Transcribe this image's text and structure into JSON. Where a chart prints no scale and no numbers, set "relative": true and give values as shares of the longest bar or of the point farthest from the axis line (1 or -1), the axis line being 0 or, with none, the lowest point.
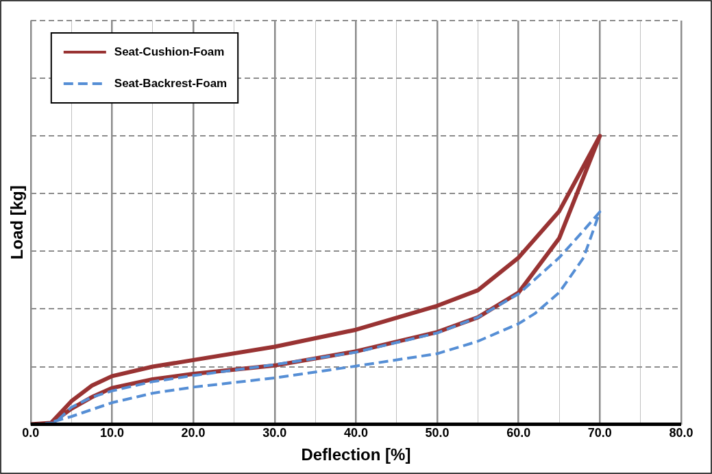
{
  "chart_data": {
    "type": "line",
    "xlabel": "Deflection [%]",
    "ylabel": "Load [kg]",
    "relative": true,
    "xlim": [
      0,
      80
    ],
    "xticks": [
      {
        "value": 0,
        "label": "0.0"
      },
      {
        "value": 5,
        "label": null
      },
      {
        "value": 10,
        "label": "10.0"
      },
      {
        "value": 15,
        "label": null
      },
      {
        "value": 20,
        "label": "20.0"
      },
      {
        "value": 25,
        "label": null
      },
      {
        "value": 30,
        "label": "30.0"
      },
      {
        "value": 35,
        "label": null
      },
      {
        "value": 40,
        "label": "40.0"
      },
      {
        "value": 45,
        "label": null
      },
      {
        "value": 50,
        "label": "50.0"
      },
      {
        "value": 55,
        "label": null
      },
      {
        "value": 60,
        "label": "60.0"
      },
      {
        "value": 65,
        "label": null
      },
      {
        "value": 70,
        "label": "70.0"
      },
      {
        "value": 75,
        "label": null
      },
      {
        "value": 80,
        "label": "80.0"
      }
    ],
    "grid": true,
    "legend": "top left",
    "tick_labels": "x",
    "marker": "none",
    "series": [
      {
        "name": "Seat-Cushion-Foam",
        "color": "#993333",
        "line_style": "solid",
        "x": [
          0,
          2.5,
          5,
          7.5,
          10,
          15,
          20,
          30,
          40,
          50,
          55,
          60,
          65,
          70,
          65,
          60,
          55,
          50,
          40,
          30,
          20,
          15,
          10,
          7.5,
          5,
          3,
          2.5
        ],
        "values": [
          0,
          0.005,
          0.08,
          0.134,
          0.167,
          0.2,
          0.223,
          0.269,
          0.328,
          0.411,
          0.465,
          0.578,
          0.739,
          1,
          0.645,
          0.457,
          0.371,
          0.32,
          0.253,
          0.204,
          0.175,
          0.156,
          0.126,
          0.094,
          0.054,
          0.013,
          0
        ]
      },
      {
        "name": "Seat-Backrest-Foam",
        "color": "#558ed5",
        "line_style": "dashed",
        "x": [
          0,
          3,
          5,
          7.5,
          10,
          15,
          20,
          30,
          40,
          50,
          55,
          60,
          65,
          68,
          70,
          68,
          65,
          62,
          60,
          55,
          50,
          40,
          30,
          20,
          15,
          10,
          7.5,
          5,
          3,
          2
        ],
        "values": [
          0,
          0.005,
          0.059,
          0.094,
          0.116,
          0.148,
          0.169,
          0.207,
          0.25,
          0.317,
          0.371,
          0.452,
          0.578,
          0.672,
          0.737,
          0.578,
          0.457,
          0.384,
          0.349,
          0.288,
          0.245,
          0.202,
          0.161,
          0.129,
          0.108,
          0.075,
          0.051,
          0.027,
          0.011,
          0
        ]
      }
    ]
  }
}
